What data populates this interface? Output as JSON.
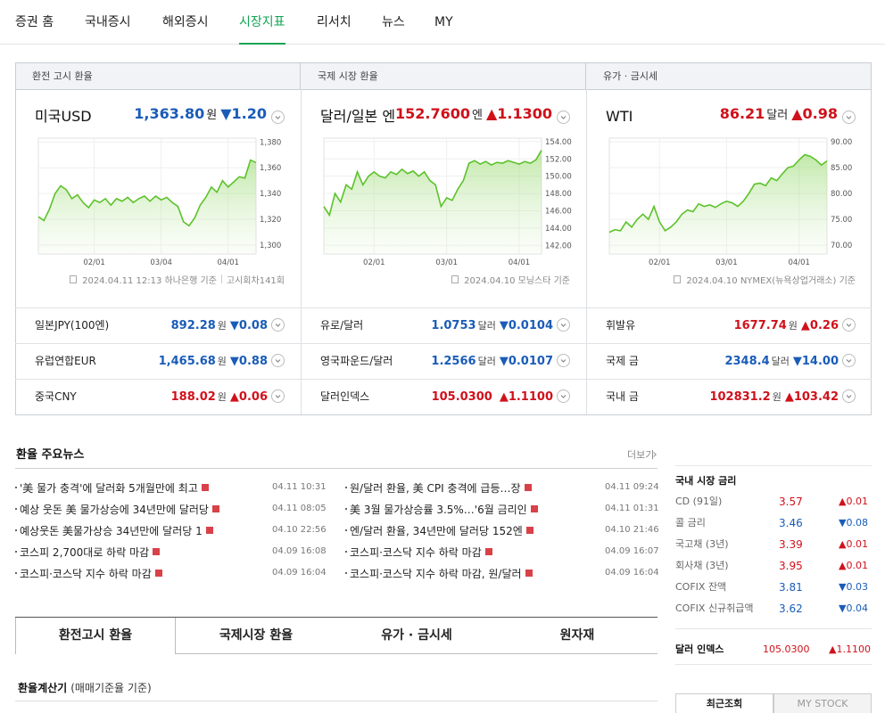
{
  "colors": {
    "up": "#d0111b",
    "down": "#1a5cb8",
    "accent": "#13a454",
    "chart": "#5cc22a"
  },
  "nav": {
    "items": [
      "증권 홈",
      "국내증시",
      "해외증시",
      "시장지표",
      "리서치",
      "뉴스",
      "MY"
    ],
    "active": 3
  },
  "panels": [
    {
      "header": "환전 고시 환율",
      "main": {
        "name": "미국USD",
        "value": "1,363.80",
        "unit": "원",
        "change": "▼1.20",
        "direction": "down"
      },
      "chart": {
        "type": "line",
        "values": [
          1322,
          1319,
          1328,
          1340,
          1346,
          1343,
          1336,
          1339,
          1333,
          1329,
          1335,
          1333,
          1336,
          1331,
          1336,
          1334,
          1337,
          1333,
          1336,
          1338,
          1334,
          1338,
          1335,
          1337,
          1333,
          1330,
          1318,
          1315,
          1321,
          1331,
          1337,
          1345,
          1341,
          1350,
          1345,
          1349,
          1353,
          1352,
          1366,
          1364
        ],
        "ylim": [
          1293,
          1383
        ],
        "yticks": [
          {
            "value": 1300,
            "label": "1,300"
          },
          {
            "value": 1320,
            "label": "1,320"
          },
          {
            "value": 1340,
            "label": "1,340"
          },
          {
            "value": 1360,
            "label": "1,360"
          },
          {
            "value": 1380,
            "label": "1,380"
          }
        ],
        "xticks": [
          {
            "value": 10,
            "label": "02/01"
          },
          {
            "value": 22,
            "label": "03/04"
          },
          {
            "value": 34,
            "label": "04/01"
          }
        ]
      },
      "note": [
        "2024.04.11 12:13 하나은행 기준",
        "고시회차141회"
      ],
      "rows": [
        {
          "name": "일본JPY(100엔)",
          "value": "892.28",
          "unit": "원",
          "change": "▼0.08",
          "direction": "down"
        },
        {
          "name": "유럽연합EUR",
          "value": "1,465.68",
          "unit": "원",
          "change": "▼0.88",
          "direction": "down"
        },
        {
          "name": "중국CNY",
          "value": "188.02",
          "unit": "원",
          "change": "▲0.06",
          "direction": "up"
        }
      ]
    },
    {
      "header": "국제 시장 환율",
      "main": {
        "name": "달러/일본 엔",
        "value": "152.7600",
        "unit": "엔",
        "change": "▲1.1300",
        "direction": "up"
      },
      "chart": {
        "type": "line",
        "values": [
          146.5,
          145.5,
          148,
          147,
          149,
          148.5,
          150.5,
          149,
          150,
          150.5,
          150,
          149.8,
          150.5,
          150.2,
          150.8,
          150.3,
          150.6,
          150,
          150.5,
          149.5,
          149,
          146.5,
          147.5,
          147.2,
          148.5,
          149.5,
          151.5,
          151.8,
          151.4,
          151.7,
          151.3,
          151.6,
          151.5,
          151.8,
          151.6,
          151.4,
          151.7,
          151.5,
          151.9,
          153
        ],
        "ylim": [
          141,
          154.4
        ],
        "yticks": [
          {
            "value": 142,
            "label": "142.00"
          },
          {
            "value": 144,
            "label": "144.00"
          },
          {
            "value": 146,
            "label": "146.00"
          },
          {
            "value": 148,
            "label": "148.00"
          },
          {
            "value": 150,
            "label": "150.00"
          },
          {
            "value": 152,
            "label": "152.00"
          },
          {
            "value": 154,
            "label": "154.00"
          }
        ],
        "xticks": [
          {
            "value": 9,
            "label": "02/01"
          },
          {
            "value": 22,
            "label": "03/01"
          },
          {
            "value": 35,
            "label": "04/01"
          }
        ]
      },
      "note": [
        "2024.04.10 모닝스타 기준"
      ],
      "rows": [
        {
          "name": "유로/달러",
          "value": "1.0753",
          "unit": "달러",
          "change": "▼0.0104",
          "direction": "down"
        },
        {
          "name": "영국파운드/달러",
          "value": "1.2566",
          "unit": "달러",
          "change": "▼0.0107",
          "direction": "down"
        },
        {
          "name": "달러인덱스",
          "value": "105.0300",
          "change": "▲1.1100",
          "direction": "up"
        }
      ]
    },
    {
      "header": "유가 · 금시세",
      "main": {
        "name": "WTI",
        "value": "86.21",
        "unit": "달러",
        "change": "▲0.98",
        "direction": "up"
      },
      "chart": {
        "type": "line",
        "values": [
          72.5,
          73,
          72.8,
          74.5,
          73.5,
          75,
          76,
          75,
          77.5,
          74.5,
          72.8,
          73.5,
          74.5,
          76,
          76.8,
          76.5,
          78,
          77.5,
          77.8,
          77.3,
          78,
          78.5,
          78.2,
          77.5,
          78.5,
          80,
          81.8,
          82,
          81.5,
          83,
          82.5,
          83.8,
          85,
          85.3,
          86.5,
          87.5,
          87.2,
          86.5,
          85.5,
          86.3
        ],
        "ylim": [
          68.3,
          90.7
        ],
        "yticks": [
          {
            "value": 70,
            "label": "70.00"
          },
          {
            "value": 75,
            "label": "75.00"
          },
          {
            "value": 80,
            "label": "80.00"
          },
          {
            "value": 85,
            "label": "85.00"
          },
          {
            "value": 90,
            "label": "90.00"
          }
        ],
        "xticks": [
          {
            "value": 9,
            "label": "02/01"
          },
          {
            "value": 21,
            "label": "03/01"
          },
          {
            "value": 34,
            "label": "04/01"
          }
        ]
      },
      "note": [
        "2024.04.10 NYMEX(뉴욕상업거래소) 기준"
      ],
      "rows": [
        {
          "name": "휘발유",
          "value": "1677.74",
          "unit": "원",
          "change": "▲0.26",
          "direction": "up"
        },
        {
          "name": "국제 금",
          "value": "2348.4",
          "unit": "달러",
          "change": "▼14.00",
          "direction": "down"
        },
        {
          "name": "국내 금",
          "value": "102831.2",
          "unit": "원",
          "change": "▲103.42",
          "direction": "up"
        }
      ]
    }
  ],
  "news": {
    "title": "환율 주요뉴스",
    "more": "더보기",
    "columns": [
      [
        {
          "title": "'美 물가 충격'에 달러화 5개월만에 최고",
          "date": "04.11 10:31"
        },
        {
          "title": "예상 웃돈 美 물가상승에 34년만에 달러당",
          "date": "04.11 08:05"
        },
        {
          "title": "예상웃돈 美물가상승 34년만에 달러당 1",
          "date": "04.10 22:56"
        },
        {
          "title": "코스피 2,700대로 하락 마감",
          "date": "04.09 16:08"
        },
        {
          "title": "코스피·코스닥 지수 하락 마감",
          "date": "04.09 16:04"
        }
      ],
      [
        {
          "title": "원/달러 환율, 美 CPI 충격에 급등…장",
          "date": "04.11 09:24"
        },
        {
          "title": "美 3월 물가상승률 3.5%…'6월 금리인",
          "date": "04.11 01:31"
        },
        {
          "title": "엔/달러 환율, 34년만에 달러당 152엔",
          "date": "04.10 21:46"
        },
        {
          "title": "코스피·코스닥 지수 하락 마감",
          "date": "04.09 16:07"
        },
        {
          "title": "코스피·코스닥 지수 하락 마감, 원/달러",
          "date": "04.09 16:04"
        }
      ]
    ]
  },
  "tabs": {
    "items": [
      "환전고시 환율",
      "국제시장 환율",
      "유가 · 금시세",
      "원자재"
    ],
    "active": 0
  },
  "calculator": {
    "title": "환율계산기",
    "subtitle": "(매매기준율 기준)"
  },
  "rates": {
    "title": "국내 시장 금리",
    "rows": [
      {
        "name": "CD (91일)",
        "value": "3.57",
        "change": "▲0.01",
        "direction": "up"
      },
      {
        "name": "콜 금리",
        "value": "3.46",
        "change": "▼0.08",
        "direction": "down"
      },
      {
        "name": "국고채 (3년)",
        "value": "3.39",
        "change": "▲0.01",
        "direction": "up"
      },
      {
        "name": "회사채 (3년)",
        "value": "3.95",
        "change": "▲0.01",
        "direction": "up"
      },
      {
        "name": "COFIX 잔액",
        "value": "3.81",
        "change": "▼0.03",
        "direction": "down"
      },
      {
        "name": "COFIX 신규취급액",
        "value": "3.62",
        "change": "▼0.04",
        "direction": "down"
      }
    ]
  },
  "dollar_index": {
    "name": "달러 인덱스",
    "value": "105.0300",
    "change": "▲1.1100",
    "direction": "up"
  },
  "side_tabs": {
    "items": [
      "최근조회",
      "MY STOCK"
    ],
    "active": 0
  }
}
